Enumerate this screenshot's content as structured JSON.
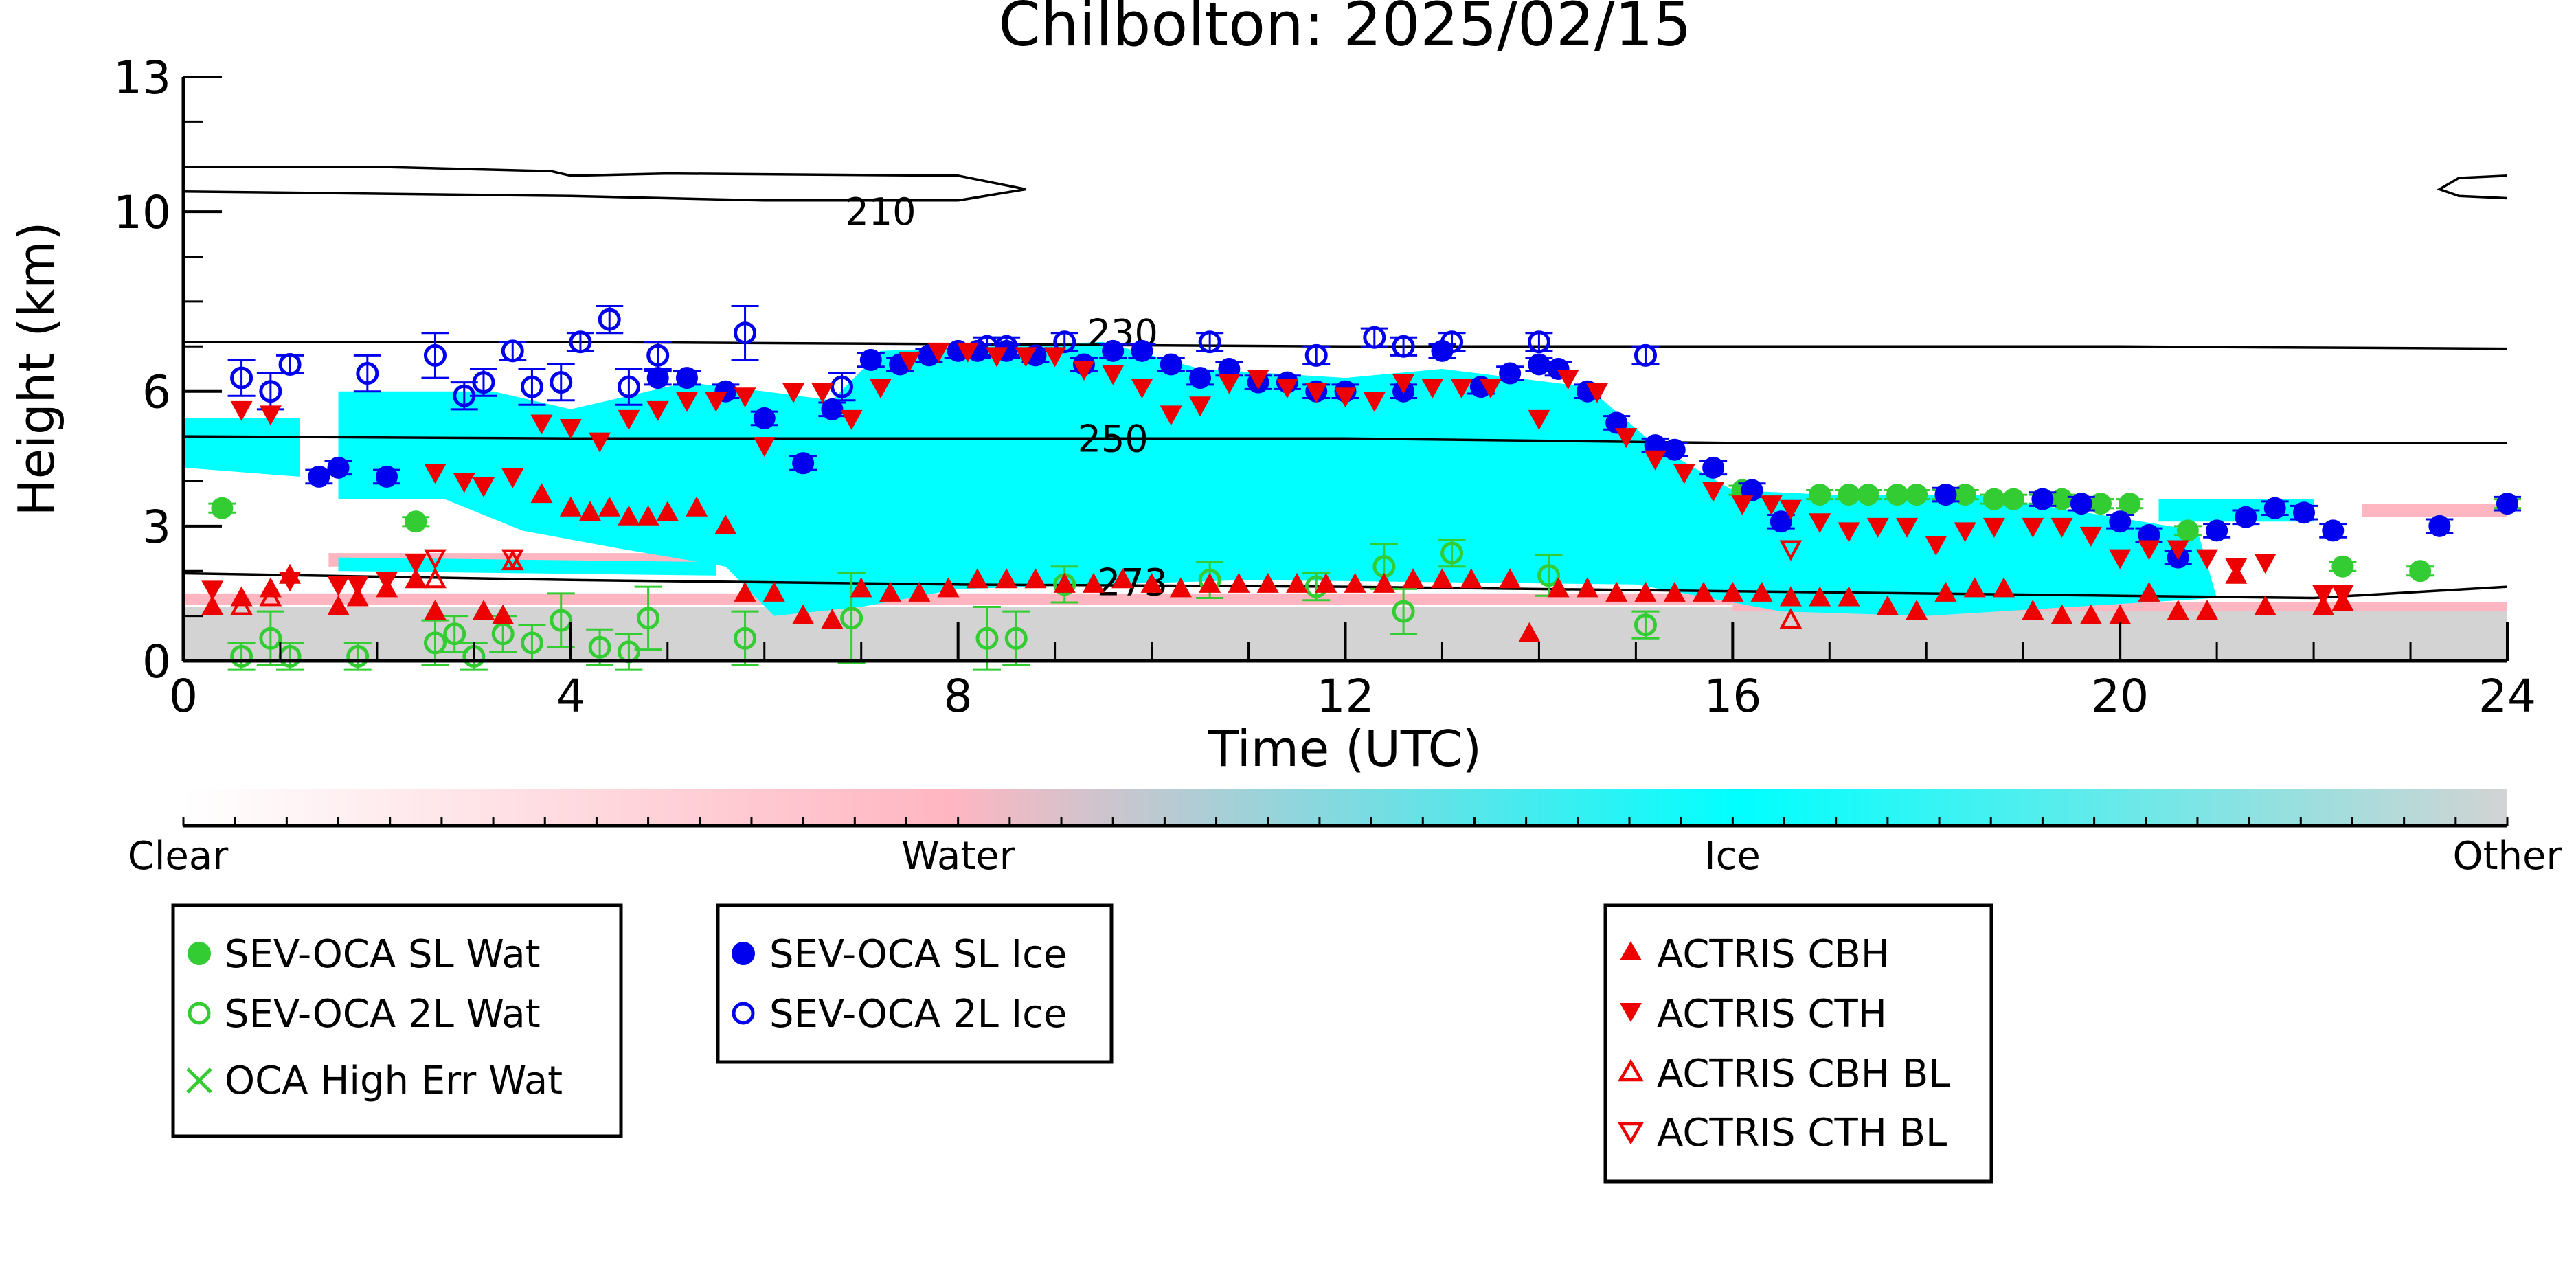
{
  "chart_data": {
    "type": "scatter",
    "title": "Chilbolton: 2025/02/15",
    "xlabel": "Time (UTC)",
    "ylabel": "Height (km)",
    "xlim": [
      0,
      24
    ],
    "ylim": [
      0,
      13
    ],
    "xticks": [
      0,
      4,
      8,
      12,
      16,
      20,
      24
    ],
    "yticks": [
      0,
      3,
      6,
      10,
      13
    ],
    "grid": false,
    "background_classification": {
      "colorbar_labels": [
        "Clear",
        "Water",
        "Ice",
        "Other"
      ],
      "colors": {
        "Clear": "#ffffff",
        "Water": "#ffb6c1",
        "Ice": "#00ffff",
        "Other": "#d3d3d3"
      },
      "ice_region": [
        [
          1.6,
          6.0
        ],
        [
          3.2,
          6.0
        ],
        [
          4,
          5.6
        ],
        [
          5.2,
          6.2
        ],
        [
          6,
          6.0
        ],
        [
          6.7,
          5.8
        ],
        [
          7.2,
          6.9
        ],
        [
          9.5,
          7.1
        ],
        [
          10.5,
          6.5
        ],
        [
          12,
          6.3
        ],
        [
          13,
          6.5
        ],
        [
          14.5,
          6.1
        ],
        [
          15.2,
          4.8
        ],
        [
          16,
          3.8
        ],
        [
          17,
          3.7
        ],
        [
          18.5,
          3.7
        ],
        [
          20.8,
          2.9
        ],
        [
          21,
          1.4
        ],
        [
          18,
          1.0
        ],
        [
          16.5,
          1.1
        ],
        [
          15,
          1.7
        ],
        [
          11,
          1.8
        ],
        [
          8,
          1.6
        ],
        [
          7,
          1.2
        ],
        [
          6.1,
          1.0
        ],
        [
          5.6,
          2.1
        ],
        [
          4.5,
          2.5
        ],
        [
          3.5,
          2.9
        ],
        [
          2.7,
          3.6
        ],
        [
          1.6,
          3.6
        ]
      ],
      "ice_patches": [
        [
          [
            0,
            5.4
          ],
          [
            1.2,
            5.4
          ],
          [
            1.2,
            4.1
          ],
          [
            0,
            4.3
          ]
        ],
        [
          [
            1.6,
            2.3
          ],
          [
            5.5,
            2.2
          ],
          [
            5.5,
            1.9
          ],
          [
            1.6,
            2.0
          ]
        ],
        [
          [
            20.4,
            3.6
          ],
          [
            22,
            3.6
          ],
          [
            22,
            3.1
          ],
          [
            20.4,
            3.1
          ]
        ]
      ],
      "water_bands": [
        [
          [
            0,
            1.5
          ],
          [
            16,
            1.5
          ],
          [
            16,
            1.25
          ],
          [
            0,
            1.25
          ]
        ],
        [
          [
            16,
            1.3
          ],
          [
            24,
            1.3
          ],
          [
            24,
            1.1
          ],
          [
            16,
            1.1
          ]
        ],
        [
          [
            22.5,
            3.5
          ],
          [
            24,
            3.5
          ],
          [
            24,
            3.2
          ],
          [
            22.5,
            3.2
          ]
        ],
        [
          [
            1.5,
            2.4
          ],
          [
            5.5,
            2.4
          ],
          [
            5.5,
            2.1
          ],
          [
            1.5,
            2.1
          ]
        ]
      ],
      "other_region": [
        [
          0,
          1.2
        ],
        [
          24,
          1.2
        ],
        [
          24,
          0
        ],
        [
          0,
          0
        ]
      ]
    },
    "isotherms": [
      {
        "label": "210",
        "label_at": [
          7.2,
          10.0
        ],
        "points": [
          [
            0,
            11.0
          ],
          [
            2,
            11.0
          ],
          [
            3.8,
            10.9
          ],
          [
            4,
            10.8
          ],
          [
            5,
            10.85
          ],
          [
            8,
            10.8
          ],
          [
            8.7,
            10.5
          ],
          [
            8,
            10.25
          ],
          [
            6,
            10.25
          ],
          [
            4,
            10.35
          ],
          [
            0,
            10.45
          ]
        ]
      },
      {
        "label": "210",
        "label_at": null,
        "points": [
          [
            24,
            10.8
          ],
          [
            23.5,
            10.75
          ],
          [
            23.3,
            10.5
          ],
          [
            23.5,
            10.35
          ],
          [
            24,
            10.3
          ]
        ]
      },
      {
        "label": "230",
        "label_at": [
          9.7,
          7.3
        ],
        "points": [
          [
            0,
            7.1
          ],
          [
            4,
            7.1
          ],
          [
            8,
            7.05
          ],
          [
            12,
            7.0
          ],
          [
            16,
            7.0
          ],
          [
            20,
            7.0
          ],
          [
            24,
            6.95
          ]
        ]
      },
      {
        "label": "250",
        "label_at": [
          9.6,
          4.95
        ],
        "points": [
          [
            0,
            5.0
          ],
          [
            4,
            4.95
          ],
          [
            8,
            4.95
          ],
          [
            12,
            4.95
          ],
          [
            16,
            4.85
          ],
          [
            20,
            4.85
          ],
          [
            24,
            4.85
          ]
        ]
      },
      {
        "label": "273",
        "label_at": [
          9.8,
          1.75
        ],
        "points": [
          [
            0,
            1.95
          ],
          [
            4,
            1.8
          ],
          [
            8,
            1.7
          ],
          [
            12,
            1.65
          ],
          [
            16,
            1.55
          ],
          [
            20,
            1.45
          ],
          [
            22,
            1.4
          ],
          [
            24,
            1.65
          ]
        ]
      }
    ],
    "series": [
      {
        "name": "SEV-OCA SL Wat",
        "marker": "circle-filled",
        "color": "#33cc33",
        "x": [
          0.4,
          2.4,
          16.1,
          16.9,
          17.2,
          17.4,
          17.7,
          17.9,
          18.2,
          18.4,
          18.7,
          18.9,
          19.2,
          19.4,
          19.8,
          20.1,
          20.7,
          22.3,
          23.1,
          24.0
        ],
        "y": [
          3.4,
          3.1,
          3.8,
          3.7,
          3.7,
          3.7,
          3.7,
          3.7,
          3.7,
          3.7,
          3.6,
          3.6,
          3.6,
          3.6,
          3.5,
          3.5,
          2.9,
          2.1,
          2.0,
          3.5
        ],
        "err": [
          0.1,
          0.1,
          0.1,
          0.1,
          0.1,
          0.1,
          0.1,
          0.1,
          0.1,
          0.1,
          0.1,
          0.1,
          0.1,
          0.1,
          0.1,
          0.1,
          0.1,
          0.1,
          0.1,
          0.1
        ]
      },
      {
        "name": "SEV-OCA 2L Wat",
        "marker": "circle-open",
        "color": "#33cc33",
        "x": [
          0.6,
          0.9,
          1.1,
          1.8,
          2.6,
          2.8,
          3.0,
          3.3,
          3.6,
          3.9,
          4.3,
          4.6,
          4.8,
          5.8,
          6.9,
          8.3,
          8.6,
          9.1,
          10.6,
          11.7,
          12.4,
          12.6,
          13.1,
          14.1,
          15.1
        ],
        "y": [
          0.1,
          0.5,
          0.1,
          0.1,
          0.4,
          0.6,
          0.1,
          0.6,
          0.4,
          0.9,
          0.3,
          0.2,
          0.95,
          0.5,
          0.95,
          0.5,
          0.5,
          1.7,
          1.8,
          1.65,
          2.1,
          1.1,
          2.4,
          1.9,
          0.8
        ],
        "err": [
          0.3,
          0.6,
          0.3,
          0.3,
          0.5,
          0.4,
          0.3,
          0.4,
          0.4,
          0.6,
          0.4,
          0.4,
          0.7,
          0.6,
          1.0,
          0.7,
          0.6,
          0.4,
          0.4,
          0.3,
          0.5,
          0.5,
          0.3,
          0.45,
          0.3
        ]
      },
      {
        "name": "OCA High Err Wat",
        "marker": "x",
        "color": "#33cc33",
        "x": [],
        "y": []
      },
      {
        "name": "SEV-OCA SL Ice",
        "marker": "circle-filled",
        "color": "#0000ee",
        "x": [
          1.4,
          1.6,
          2.1,
          4.9,
          5.2,
          5.6,
          6.0,
          6.4,
          6.7,
          7.1,
          7.4,
          7.7,
          8.0,
          8.2,
          8.5,
          8.8,
          9.3,
          9.6,
          9.9,
          10.2,
          10.5,
          10.8,
          11.1,
          11.4,
          11.7,
          12.0,
          12.6,
          13.0,
          13.4,
          13.7,
          14.0,
          14.2,
          14.5,
          14.8,
          15.2,
          15.4,
          15.8,
          16.2,
          16.5,
          18.2,
          19.2,
          19.6,
          20.0,
          20.3,
          20.6,
          21.0,
          21.3,
          21.6,
          21.9,
          22.2,
          23.3,
          24.0
        ],
        "y": [
          4.1,
          4.3,
          4.1,
          6.3,
          6.3,
          6.0,
          5.4,
          4.4,
          5.6,
          6.7,
          6.6,
          6.8,
          6.9,
          6.9,
          6.9,
          6.8,
          6.6,
          6.9,
          6.9,
          6.6,
          6.3,
          6.5,
          6.2,
          6.2,
          6.0,
          6.0,
          6.0,
          6.9,
          6.1,
          6.4,
          6.6,
          6.5,
          6.0,
          5.3,
          4.8,
          4.7,
          4.3,
          3.8,
          3.1,
          3.7,
          3.6,
          3.5,
          3.1,
          2.8,
          2.3,
          2.9,
          3.2,
          3.4,
          3.3,
          2.9,
          3.0,
          3.5
        ],
        "err": [
          0.15,
          0.15,
          0.15,
          0.15,
          0.15,
          0.15,
          0.15,
          0.15,
          0.15,
          0.15,
          0.15,
          0.15,
          0.15,
          0.15,
          0.15,
          0.15,
          0.15,
          0.15,
          0.15,
          0.15,
          0.15,
          0.15,
          0.15,
          0.15,
          0.15,
          0.15,
          0.15,
          0.15,
          0.15,
          0.15,
          0.15,
          0.15,
          0.15,
          0.15,
          0.15,
          0.15,
          0.15,
          0.15,
          0.15,
          0.15,
          0.15,
          0.15,
          0.15,
          0.15,
          0.15,
          0.15,
          0.15,
          0.15,
          0.15,
          0.15,
          0.15,
          0.15
        ]
      },
      {
        "name": "SEV-OCA 2L Ice",
        "marker": "circle-open",
        "color": "#0000ee",
        "x": [
          0.6,
          0.9,
          1.1,
          1.9,
          2.6,
          2.9,
          3.1,
          3.4,
          3.6,
          3.9,
          4.1,
          4.4,
          4.6,
          4.9,
          5.8,
          6.8,
          8.3,
          8.5,
          9.1,
          10.6,
          11.7,
          12.3,
          12.6,
          13.1,
          14.0,
          15.1
        ],
        "y": [
          6.3,
          6.0,
          6.6,
          6.4,
          6.8,
          5.9,
          6.2,
          6.9,
          6.1,
          6.2,
          7.1,
          7.6,
          6.1,
          6.8,
          7.3,
          6.1,
          7.0,
          7.0,
          7.1,
          7.1,
          6.8,
          7.2,
          7.0,
          7.1,
          7.1,
          6.8
        ],
        "err": [
          0.4,
          0.4,
          0.2,
          0.4,
          0.5,
          0.3,
          0.3,
          0.2,
          0.4,
          0.4,
          0.2,
          0.3,
          0.4,
          0.3,
          0.6,
          0.3,
          0.2,
          0.2,
          0.2,
          0.2,
          0.2,
          0.2,
          0.2,
          0.2,
          0.2,
          0.2
        ]
      },
      {
        "name": "ACTRIS CBH",
        "marker": "triangle-up-filled",
        "color": "#ee0000",
        "x": [
          0.3,
          0.6,
          0.9,
          1.1,
          1.6,
          1.8,
          2.1,
          2.4,
          2.6,
          3.1,
          3.3,
          3.7,
          4.0,
          4.2,
          4.4,
          4.6,
          4.8,
          5.0,
          5.3,
          5.6,
          5.8,
          6.1,
          6.4,
          6.7,
          7.0,
          7.3,
          7.6,
          7.9,
          8.2,
          8.5,
          8.8,
          9.1,
          9.4,
          9.7,
          10.0,
          10.3,
          10.6,
          10.9,
          11.2,
          11.5,
          11.8,
          12.1,
          12.4,
          12.7,
          13.0,
          13.3,
          13.7,
          13.9,
          14.2,
          14.5,
          14.8,
          15.1,
          15.4,
          15.7,
          16.0,
          16.3,
          16.6,
          16.9,
          17.2,
          17.6,
          17.9,
          18.2,
          18.5,
          18.8,
          19.1,
          19.4,
          19.7,
          20.0,
          20.3,
          20.6,
          20.9,
          21.2,
          21.5,
          22.1,
          22.3
        ],
        "y": [
          1.2,
          1.4,
          1.6,
          1.9,
          1.2,
          1.4,
          1.6,
          1.8,
          1.1,
          1.1,
          1.0,
          3.7,
          3.4,
          3.3,
          3.4,
          3.2,
          3.2,
          3.3,
          3.4,
          3.0,
          1.5,
          1.5,
          1.0,
          0.9,
          1.6,
          1.5,
          1.5,
          1.6,
          1.8,
          1.8,
          1.8,
          1.7,
          1.7,
          1.8,
          1.7,
          1.6,
          1.7,
          1.7,
          1.7,
          1.7,
          1.7,
          1.7,
          1.7,
          1.8,
          1.8,
          1.8,
          1.8,
          0.6,
          1.6,
          1.6,
          1.5,
          1.5,
          1.5,
          1.5,
          1.5,
          1.5,
          1.4,
          1.4,
          1.4,
          1.2,
          1.1,
          1.5,
          1.6,
          1.6,
          1.1,
          1.0,
          1.0,
          1.0,
          1.5,
          1.1,
          1.1,
          1.9,
          1.2,
          1.2,
          1.3
        ],
        "err": []
      },
      {
        "name": "ACTRIS CTH",
        "marker": "triangle-down-filled",
        "color": "#ee0000",
        "x": [
          0.3,
          0.6,
          0.9,
          1.1,
          1.6,
          1.8,
          2.1,
          2.4,
          2.6,
          2.9,
          3.1,
          3.4,
          3.7,
          4.0,
          4.3,
          4.6,
          4.9,
          5.2,
          5.5,
          5.8,
          6.0,
          6.3,
          6.6,
          6.9,
          7.2,
          7.5,
          7.8,
          8.1,
          8.4,
          8.7,
          9.0,
          9.3,
          9.6,
          9.9,
          10.2,
          10.5,
          10.8,
          11.1,
          11.4,
          11.7,
          12.0,
          12.3,
          12.6,
          12.9,
          13.2,
          13.5,
          14.0,
          14.3,
          14.6,
          14.9,
          15.2,
          15.5,
          15.8,
          16.1,
          16.4,
          16.6,
          16.9,
          17.2,
          17.5,
          17.8,
          18.1,
          18.4,
          18.7,
          19.1,
          19.4,
          19.7,
          20.0,
          20.3,
          20.6,
          20.9,
          21.2,
          21.5,
          22.1,
          22.3
        ],
        "y": [
          1.6,
          5.6,
          5.5,
          1.8,
          1.7,
          1.7,
          1.8,
          2.2,
          4.2,
          4.0,
          3.9,
          4.1,
          5.3,
          5.2,
          4.9,
          5.4,
          5.6,
          5.8,
          5.8,
          5.9,
          4.8,
          6.0,
          6.0,
          5.4,
          6.1,
          6.7,
          6.9,
          6.9,
          6.8,
          6.8,
          6.8,
          6.5,
          6.4,
          6.1,
          5.5,
          5.7,
          6.2,
          6.3,
          6.1,
          6.0,
          5.9,
          5.8,
          6.2,
          6.1,
          6.1,
          6.1,
          5.4,
          6.3,
          6.0,
          5.0,
          4.5,
          4.2,
          3.8,
          3.5,
          3.5,
          3.4,
          3.1,
          2.9,
          3.0,
          3.0,
          2.6,
          2.9,
          3.0,
          3.0,
          3.0,
          2.8,
          2.3,
          2.5,
          2.5,
          2.3,
          2.1,
          2.2,
          1.5,
          1.5
        ],
        "err": []
      },
      {
        "name": "ACTRIS CBH BL",
        "marker": "triangle-up-open",
        "color": "#ee0000",
        "x": [
          0.6,
          0.9,
          2.6,
          3.4,
          16.6
        ],
        "y": [
          1.2,
          1.4,
          1.8,
          2.2,
          0.9
        ],
        "err": []
      },
      {
        "name": "ACTRIS CTH BL",
        "marker": "triangle-down-open",
        "color": "#ee0000",
        "x": [
          2.6,
          3.4,
          16.6
        ],
        "y": [
          2.3,
          2.3,
          2.5
        ],
        "err": []
      }
    ],
    "legends": [
      {
        "entries": [
          "SEV-OCA SL Wat",
          "SEV-OCA 2L Wat",
          "OCA High Err Wat"
        ]
      },
      {
        "entries": [
          "SEV-OCA SL Ice",
          "SEV-OCA 2L Ice"
        ]
      },
      {
        "entries": [
          "ACTRIS CBH",
          "ACTRIS CTH",
          "ACTRIS CBH BL",
          "ACTRIS CTH BL"
        ]
      }
    ]
  }
}
